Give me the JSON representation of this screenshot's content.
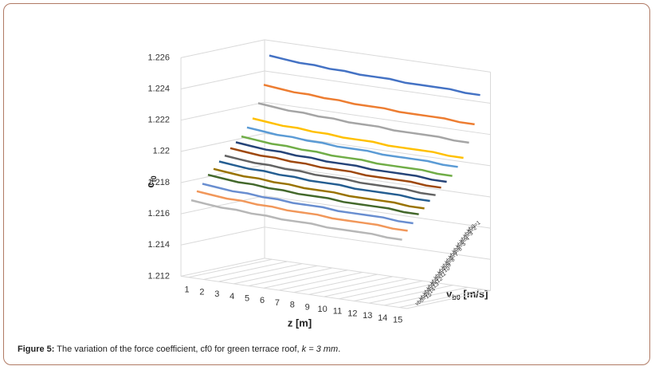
{
  "chart_data": {
    "type": "line3d",
    "y_label": {
      "main": "c",
      "sub": "f0"
    },
    "x_label": "z [m]",
    "z_label": {
      "main": "v",
      "sub": "b0",
      "rest": " [m/s]"
    },
    "x": [
      1,
      2,
      3,
      4,
      5,
      6,
      7,
      8,
      9,
      10,
      11,
      12,
      13,
      14,
      15
    ],
    "ylim": [
      1.212,
      1.226
    ],
    "yticks": [
      1.212,
      1.214,
      1.216,
      1.218,
      1.22,
      1.222,
      1.224,
      1.226
    ],
    "grid": true,
    "series": [
      {
        "name": "vb0=1",
        "color": "#4472c4",
        "values": [
          1.2251,
          1.225,
          1.2249,
          1.2249,
          1.2248,
          1.2248,
          1.2247,
          1.2247,
          1.2247,
          1.2246,
          1.2246,
          1.2246,
          1.2246,
          1.2245,
          1.2245
        ]
      },
      {
        "name": "vb0=2",
        "color": "#ed7d31",
        "values": [
          1.2233,
          1.2232,
          1.2231,
          1.2231,
          1.223,
          1.223,
          1.2229,
          1.2229,
          1.2229,
          1.2228,
          1.2228,
          1.2228,
          1.2228,
          1.2227,
          1.2227
        ]
      },
      {
        "name": "vb0=3",
        "color": "#a5a5a5",
        "values": [
          1.2222,
          1.2221,
          1.222,
          1.222,
          1.2219,
          1.2219,
          1.2218,
          1.2218,
          1.2218,
          1.2217,
          1.2217,
          1.2217,
          1.2217,
          1.2216,
          1.2216
        ]
      },
      {
        "name": "vb0=4",
        "color": "#ffc000",
        "values": [
          1.2213,
          1.2212,
          1.2211,
          1.2211,
          1.221,
          1.221,
          1.2209,
          1.2209,
          1.2209,
          1.2208,
          1.2208,
          1.2208,
          1.2208,
          1.2207,
          1.2207
        ]
      },
      {
        "name": "vb0=5",
        "color": "#5b9bd5",
        "values": [
          1.2208,
          1.2207,
          1.2206,
          1.2206,
          1.2205,
          1.2205,
          1.2204,
          1.2204,
          1.2204,
          1.2203,
          1.2203,
          1.2203,
          1.2203,
          1.2202,
          1.2202
        ]
      },
      {
        "name": "vb0=6",
        "color": "#70ad47",
        "values": [
          1.2203,
          1.2202,
          1.2201,
          1.2201,
          1.22,
          1.22,
          1.2199,
          1.2199,
          1.2199,
          1.2198,
          1.2198,
          1.2198,
          1.2198,
          1.2197,
          1.2197
        ]
      },
      {
        "name": "vb0=7",
        "color": "#264478",
        "values": [
          1.22,
          1.2199,
          1.2198,
          1.2198,
          1.2197,
          1.2197,
          1.2196,
          1.2196,
          1.2196,
          1.2195,
          1.2195,
          1.2195,
          1.2195,
          1.2194,
          1.2194
        ]
      },
      {
        "name": "vb0=8",
        "color": "#9e480e",
        "values": [
          1.2197,
          1.2196,
          1.2195,
          1.2195,
          1.2194,
          1.2194,
          1.2193,
          1.2193,
          1.2193,
          1.2192,
          1.2192,
          1.2192,
          1.2192,
          1.2191,
          1.2191
        ]
      },
      {
        "name": "vb0=9",
        "color": "#636363",
        "values": [
          1.2193,
          1.2192,
          1.2191,
          1.2191,
          1.219,
          1.219,
          1.2189,
          1.2189,
          1.2189,
          1.2188,
          1.2188,
          1.2188,
          1.2188,
          1.2187,
          1.2187
        ]
      },
      {
        "name": "vb0=10",
        "color": "#255e91",
        "values": [
          1.219,
          1.2189,
          1.2188,
          1.2188,
          1.2187,
          1.2187,
          1.2186,
          1.2186,
          1.2186,
          1.2185,
          1.2185,
          1.2185,
          1.2185,
          1.2184,
          1.2184
        ]
      },
      {
        "name": "vb0=11",
        "color": "#997300",
        "values": [
          1.2186,
          1.2185,
          1.2184,
          1.2184,
          1.2183,
          1.2183,
          1.2182,
          1.2182,
          1.2182,
          1.2181,
          1.2181,
          1.2181,
          1.2181,
          1.218,
          1.218
        ]
      },
      {
        "name": "vb0=12",
        "color": "#43682b",
        "values": [
          1.2183,
          1.2182,
          1.2181,
          1.2181,
          1.218,
          1.218,
          1.2179,
          1.2179,
          1.2179,
          1.2178,
          1.2178,
          1.2178,
          1.2178,
          1.2177,
          1.2177
        ]
      },
      {
        "name": "vb0=13",
        "color": "#698ed0",
        "values": [
          1.2178,
          1.2177,
          1.2176,
          1.2176,
          1.2175,
          1.2175,
          1.2174,
          1.2174,
          1.2174,
          1.2173,
          1.2173,
          1.2173,
          1.2173,
          1.2172,
          1.2172
        ]
      },
      {
        "name": "vb0=14",
        "color": "#f1975a",
        "values": [
          1.2174,
          1.2173,
          1.2172,
          1.2172,
          1.2171,
          1.2171,
          1.217,
          1.217,
          1.217,
          1.2169,
          1.2169,
          1.2169,
          1.2169,
          1.2168,
          1.2168
        ]
      },
      {
        "name": "vb0=15",
        "color": "#b7b7b7",
        "values": [
          1.2169,
          1.2168,
          1.2167,
          1.2167,
          1.2166,
          1.2166,
          1.2165,
          1.2165,
          1.2165,
          1.2164,
          1.2164,
          1.2164,
          1.2164,
          1.2163,
          1.2163
        ]
      }
    ]
  },
  "caption": {
    "label": "Figure 5:",
    "text": " The variation of the force coefficient, cf0 for green terrace roof, ",
    "k": "k = 3 mm",
    "end": "."
  }
}
